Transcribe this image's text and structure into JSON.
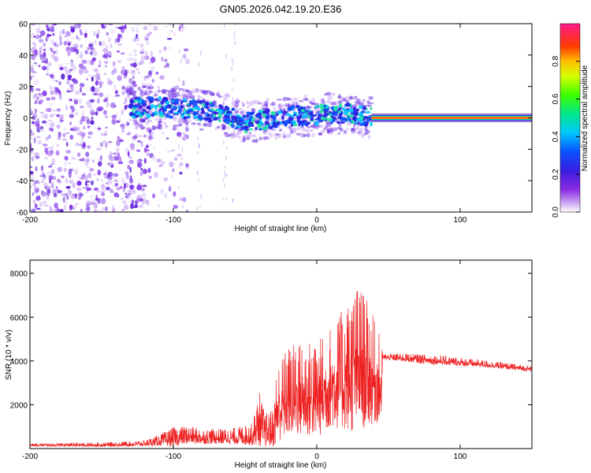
{
  "title": "GN05.2026.042.19.20.E36",
  "chart_data": [
    {
      "type": "heatmap",
      "name": "spectrogram",
      "xlabel": "Height of straight line (km)",
      "ylabel": "Frequency (Hz)",
      "xlim": [
        -200,
        150
      ],
      "ylim": [
        -60,
        60
      ],
      "xticks": [
        -200,
        -100,
        0,
        100
      ],
      "xtick_labels": [
        "-200",
        "-100",
        "0",
        "100"
      ],
      "yticks": [
        -60,
        -40,
        -20,
        0,
        20,
        40,
        60
      ],
      "ytick_labels": [
        "-60",
        "-40",
        "-20",
        "0",
        "20",
        "40",
        "60"
      ],
      "ridge": {
        "description": "dominant frequency track",
        "x": [
          -130,
          -120,
          -100,
          -80,
          -60,
          -50,
          -40,
          -20,
          0,
          20,
          30,
          38,
          150
        ],
        "y": [
          6,
          7,
          6,
          5,
          1,
          -3,
          -2,
          1,
          2,
          3,
          2,
          0,
          0
        ]
      },
      "clutter_x_range": [
        -200,
        -115
      ],
      "steady_line": {
        "x_range": [
          38,
          150
        ],
        "y": 0
      },
      "colorbar": {
        "label": "Normalized spectral amplitude",
        "range": [
          0,
          1
        ],
        "ticks": [
          0,
          0.2,
          0.4,
          0.6,
          0.8
        ],
        "tick_labels": [
          "0.0",
          "0.2",
          "0.4",
          "0.6",
          "0.8"
        ]
      }
    },
    {
      "type": "line",
      "name": "snr",
      "xlabel": "Height of straight line (km)",
      "ylabel": "SNR (10 * v/v)",
      "xlim": [
        -200,
        150
      ],
      "ylim": [
        0,
        8600
      ],
      "xticks": [
        -200,
        -100,
        0,
        100
      ],
      "xtick_labels": [
        "-200",
        "-100",
        "0",
        "100"
      ],
      "yticks": [
        2000,
        4000,
        6000,
        8000
      ],
      "ytick_labels": [
        "2000",
        "4000",
        "6000",
        "8000"
      ],
      "color": "#ee2222",
      "envelope": {
        "x": [
          -200,
          -150,
          -120,
          -110,
          -100,
          -90,
          -80,
          -60,
          -45,
          -40,
          -36,
          -30,
          -28,
          -20,
          -10,
          0,
          10,
          20,
          25,
          30,
          35,
          40,
          45,
          46,
          60,
          80,
          100,
          120,
          150
        ],
        "base": [
          150,
          150,
          200,
          300,
          400,
          500,
          450,
          450,
          500,
          1000,
          600,
          700,
          1500,
          2000,
          2100,
          2000,
          2600,
          2800,
          3000,
          3200,
          3000,
          2800,
          2500,
          4150,
          4100,
          4000,
          3900,
          3800,
          3600
        ],
        "amp": [
          100,
          150,
          200,
          400,
          700,
          650,
          550,
          550,
          800,
          2000,
          1200,
          1400,
          2800,
          3300,
          3500,
          3500,
          3700,
          4500,
          5200,
          5300,
          4600,
          3800,
          3000,
          200,
          300,
          350,
          300,
          250,
          200
        ]
      }
    }
  ]
}
